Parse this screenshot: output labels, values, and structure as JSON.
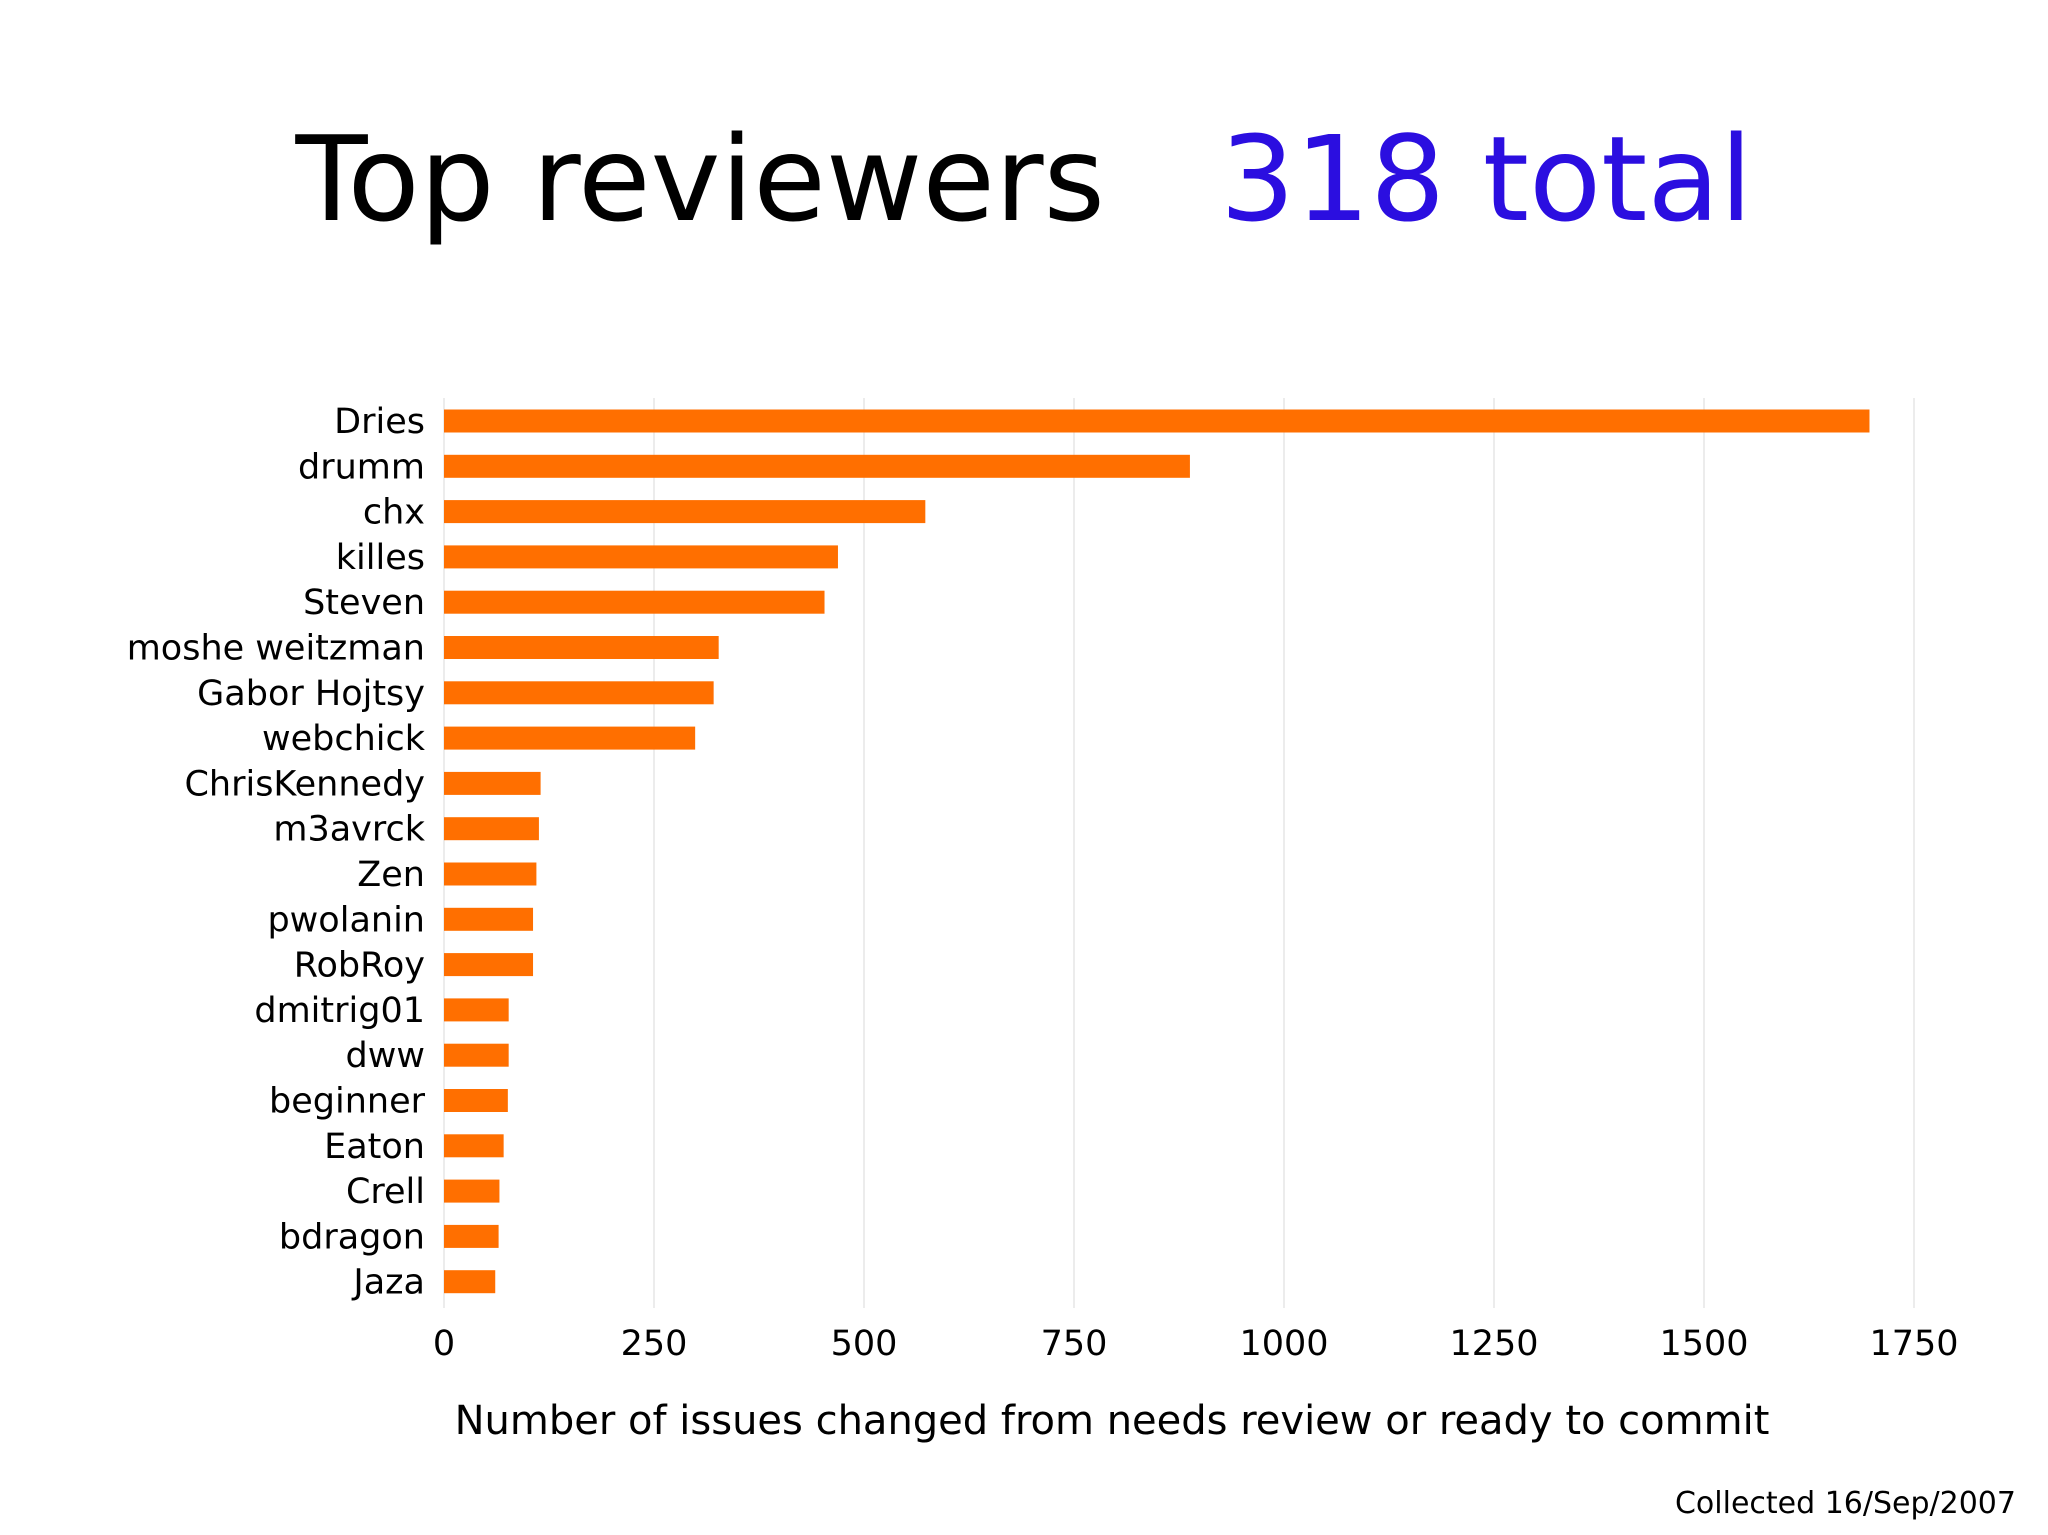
{
  "title": {
    "main": "Top reviewers",
    "total": "318 total"
  },
  "footer": {
    "collected": "Collected 16/Sep/2007"
  },
  "colors": {
    "bar": "#ff6f00",
    "total_text": "#2b0ee0",
    "grid": "#e6e6e6"
  },
  "chart_data": {
    "type": "bar",
    "orientation": "horizontal",
    "title": "Top reviewers",
    "xlabel": "Number of issues changed from needs review or ready to commit",
    "ylabel": "",
    "xlim": [
      0,
      1750
    ],
    "xticks": [
      0,
      250,
      500,
      750,
      1000,
      1250,
      1500,
      1750
    ],
    "grid": true,
    "legend": false,
    "categories": [
      "Dries",
      "drumm",
      "chx",
      "killes",
      "Steven",
      "moshe weitzman",
      "Gabor Hojtsy",
      "webchick",
      "ChrisKennedy",
      "m3avrck",
      "Zen",
      "pwolanin",
      "RobRoy",
      "dmitrig01",
      "dww",
      "beginner",
      "Eaton",
      "Crell",
      "bdragon",
      "Jaza"
    ],
    "values": [
      1697,
      888,
      573,
      469,
      453,
      327,
      321,
      299,
      115,
      113,
      110,
      106,
      106,
      77,
      77,
      76,
      71,
      66,
      65,
      61
    ]
  }
}
